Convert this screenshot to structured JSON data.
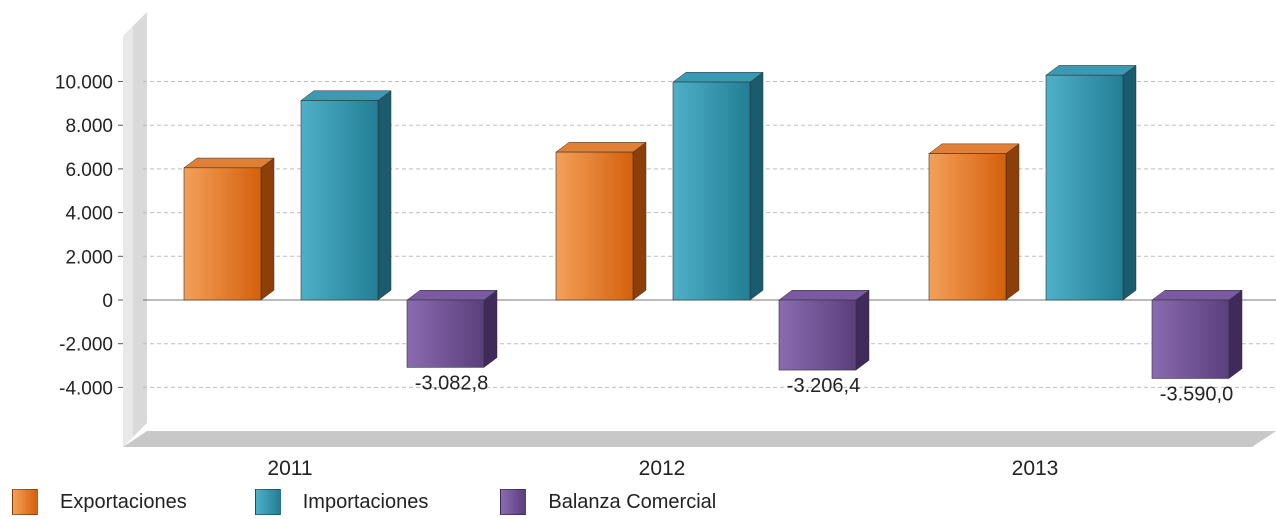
{
  "chart_data": {
    "type": "bar",
    "categories": [
      "2011",
      "2012",
      "2013"
    ],
    "series": [
      {
        "name": "Exportaciones",
        "values": [
          6050,
          6770,
          6700
        ],
        "color": "#e8741f",
        "labels": [
          "",
          "",
          ""
        ]
      },
      {
        "name": "Importaciones",
        "values": [
          9133,
          9976,
          10290
        ],
        "color": "#2b93ad",
        "labels": [
          "",
          "",
          ""
        ]
      },
      {
        "name": "Balanza Comercial",
        "values": [
          -3082.8,
          -3206.4,
          -3590.0
        ],
        "color": "#6e4f93",
        "labels": [
          "-3.082,8",
          "-3.206,4",
          "-3.590,0"
        ]
      }
    ],
    "yticks": [
      "10.000",
      "8.000",
      "6.000",
      "4.000",
      "2.000",
      "0",
      "-2.000",
      "-4.000"
    ],
    "ytick_values": [
      10000,
      8000,
      6000,
      4000,
      2000,
      0,
      -2000,
      -4000
    ],
    "ylim": [
      -6500,
      13000
    ],
    "grid": true,
    "legend_position": "bottom-left",
    "title": "",
    "xlabel": "",
    "ylabel": ""
  }
}
